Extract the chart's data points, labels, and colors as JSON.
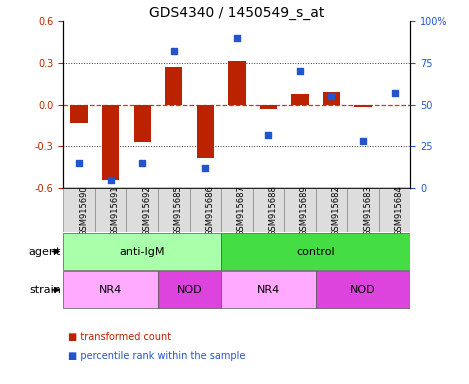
{
  "title": "GDS4340 / 1450549_s_at",
  "samples": [
    "GSM915690",
    "GSM915691",
    "GSM915692",
    "GSM915685",
    "GSM915686",
    "GSM915687",
    "GSM915688",
    "GSM915689",
    "GSM915682",
    "GSM915683",
    "GSM915684"
  ],
  "bar_values": [
    -0.13,
    -0.54,
    -0.27,
    0.27,
    -0.38,
    0.31,
    -0.03,
    0.08,
    0.09,
    -0.02,
    0.0
  ],
  "dot_values_pct": [
    15,
    5,
    15,
    82,
    12,
    90,
    32,
    70,
    55,
    28,
    57
  ],
  "ylim_left": [
    -0.6,
    0.6
  ],
  "ylim_right": [
    0,
    100
  ],
  "yticks_left": [
    -0.6,
    -0.3,
    0.0,
    0.3,
    0.6
  ],
  "yticks_right": [
    0,
    25,
    50,
    75,
    100
  ],
  "ytick_labels_right": [
    "0",
    "25",
    "50",
    "75",
    "100%"
  ],
  "bar_color": "#bb2200",
  "dot_color": "#2255cc",
  "zero_line_color": "#cc3333",
  "dotted_line_color": "#333333",
  "agent_labels": [
    {
      "label": "anti-IgM",
      "start": 0,
      "end": 5,
      "color": "#aaffaa"
    },
    {
      "label": "control",
      "start": 5,
      "end": 11,
      "color": "#44dd44"
    }
  ],
  "strain_labels": [
    {
      "label": "NR4",
      "start": 0,
      "end": 3,
      "color": "#ffaaff"
    },
    {
      "label": "NOD",
      "start": 3,
      "end": 5,
      "color": "#dd44dd"
    },
    {
      "label": "NR4",
      "start": 5,
      "end": 8,
      "color": "#ffaaff"
    },
    {
      "label": "NOD",
      "start": 8,
      "end": 11,
      "color": "#dd44dd"
    }
  ],
  "legend_items": [
    {
      "label": "transformed count",
      "color": "#bb2200"
    },
    {
      "label": "percentile rank within the sample",
      "color": "#2255cc"
    }
  ],
  "title_fontsize": 10,
  "tick_fontsize": 7,
  "sample_fontsize": 6,
  "row_label_fontsize": 8,
  "annotation_fontsize": 8
}
